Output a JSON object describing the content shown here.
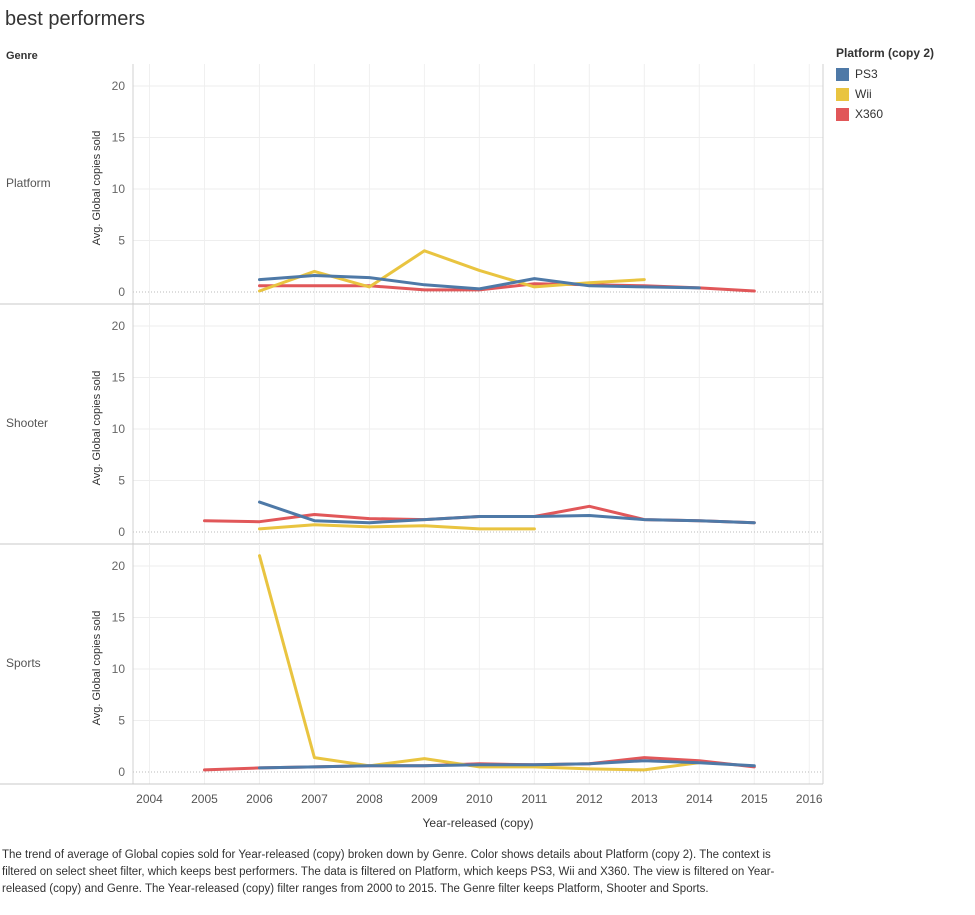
{
  "title": "best performers",
  "legend": {
    "title": "Platform (copy 2)",
    "items": [
      {
        "label": "PS3",
        "color": "#4e79a7"
      },
      {
        "label": "Wii",
        "color": "#e9c440"
      },
      {
        "label": "X360",
        "color": "#e15759"
      }
    ]
  },
  "caption": "The trend of average of Global copies sold for Year-released (copy) broken down by Genre.  Color shows details about Platform (copy 2). The context is filtered on select sheet filter, which keeps best performers. The data is filtered on Platform, which keeps PS3, Wii and X360. The view is filtered on Year-released (copy) and Genre. The Year-released (copy) filter ranges from 2000 to 2015. The Genre filter keeps Platform, Shooter and Sports.",
  "chart_data": {
    "type": "line",
    "title": "best performers",
    "row_header": "Genre",
    "xlabel": "Year-released (copy)",
    "ylabel": "Avg. Global copies sold",
    "x_ticks": [
      "2004",
      "2005",
      "2006",
      "2007",
      "2008",
      "2009",
      "2010",
      "2011",
      "2012",
      "2013",
      "2014",
      "2015",
      "2016"
    ],
    "xlim": [
      2003.7,
      2016.25
    ],
    "ylim": [
      0,
      22
    ],
    "y_ticks": [
      "0",
      "5",
      "10",
      "15",
      "20"
    ],
    "legend_position": "top-right",
    "colors": {
      "PS3": "#4e79a7",
      "Wii": "#e9c440",
      "X360": "#e15759"
    },
    "panels": [
      {
        "genre": "Platform",
        "series": [
          {
            "name": "X360",
            "points": [
              [
                2006,
                0.6
              ],
              [
                2007,
                0.6
              ],
              [
                2008,
                0.6
              ],
              [
                2009,
                0.2
              ],
              [
                2010,
                0.2
              ],
              [
                2011,
                0.8
              ],
              [
                2012,
                0.7
              ],
              [
                2013,
                0.6
              ],
              [
                2014,
                0.4
              ],
              [
                2015,
                0.1
              ]
            ]
          },
          {
            "name": "Wii",
            "points": [
              [
                2006,
                0.1
              ],
              [
                2007,
                2.0
              ],
              [
                2008,
                0.5
              ],
              [
                2009,
                4.0
              ],
              [
                2010,
                2.1
              ],
              [
                2011,
                0.5
              ],
              [
                2012,
                0.9
              ],
              [
                2013,
                1.2
              ]
            ]
          },
          {
            "name": "PS3",
            "points": [
              [
                2006,
                1.2
              ],
              [
                2007,
                1.6
              ],
              [
                2008,
                1.4
              ],
              [
                2009,
                0.7
              ],
              [
                2010,
                0.3
              ],
              [
                2011,
                1.3
              ],
              [
                2012,
                0.6
              ],
              [
                2013,
                0.5
              ],
              [
                2014,
                0.4
              ]
            ]
          }
        ]
      },
      {
        "genre": "Shooter",
        "series": [
          {
            "name": "X360",
            "points": [
              [
                2005,
                1.1
              ],
              [
                2006,
                1.0
              ],
              [
                2007,
                1.7
              ],
              [
                2008,
                1.3
              ],
              [
                2009,
                1.2
              ],
              [
                2010,
                1.5
              ],
              [
                2011,
                1.5
              ],
              [
                2012,
                2.5
              ],
              [
                2013,
                1.2
              ],
              [
                2014,
                1.1
              ],
              [
                2015,
                0.9
              ]
            ]
          },
          {
            "name": "Wii",
            "points": [
              [
                2006,
                0.3
              ],
              [
                2007,
                0.7
              ],
              [
                2008,
                0.5
              ],
              [
                2009,
                0.6
              ],
              [
                2010,
                0.3
              ],
              [
                2011,
                0.3
              ]
            ]
          },
          {
            "name": "PS3",
            "points": [
              [
                2006,
                2.9
              ],
              [
                2007,
                1.1
              ],
              [
                2008,
                0.9
              ],
              [
                2009,
                1.2
              ],
              [
                2010,
                1.5
              ],
              [
                2011,
                1.5
              ],
              [
                2012,
                1.6
              ],
              [
                2013,
                1.2
              ],
              [
                2014,
                1.1
              ],
              [
                2015,
                0.9
              ]
            ]
          }
        ]
      },
      {
        "genre": "Sports",
        "series": [
          {
            "name": "X360",
            "points": [
              [
                2005,
                0.2
              ],
              [
                2006,
                0.4
              ],
              [
                2007,
                0.5
              ],
              [
                2008,
                0.6
              ],
              [
                2009,
                0.6
              ],
              [
                2010,
                0.8
              ],
              [
                2011,
                0.7
              ],
              [
                2012,
                0.8
              ],
              [
                2013,
                1.4
              ],
              [
                2014,
                1.1
              ],
              [
                2015,
                0.5
              ]
            ]
          },
          {
            "name": "Wii",
            "points": [
              [
                2006,
                21.0
              ],
              [
                2007,
                1.4
              ],
              [
                2008,
                0.6
              ],
              [
                2009,
                1.3
              ],
              [
                2010,
                0.5
              ],
              [
                2011,
                0.5
              ],
              [
                2012,
                0.3
              ],
              [
                2013,
                0.2
              ],
              [
                2014,
                0.9
              ]
            ]
          },
          {
            "name": "PS3",
            "points": [
              [
                2006,
                0.4
              ],
              [
                2007,
                0.5
              ],
              [
                2008,
                0.6
              ],
              [
                2009,
                0.6
              ],
              [
                2010,
                0.7
              ],
              [
                2011,
                0.7
              ],
              [
                2012,
                0.8
              ],
              [
                2013,
                1.1
              ],
              [
                2014,
                0.9
              ],
              [
                2015,
                0.6
              ]
            ]
          }
        ]
      }
    ]
  }
}
